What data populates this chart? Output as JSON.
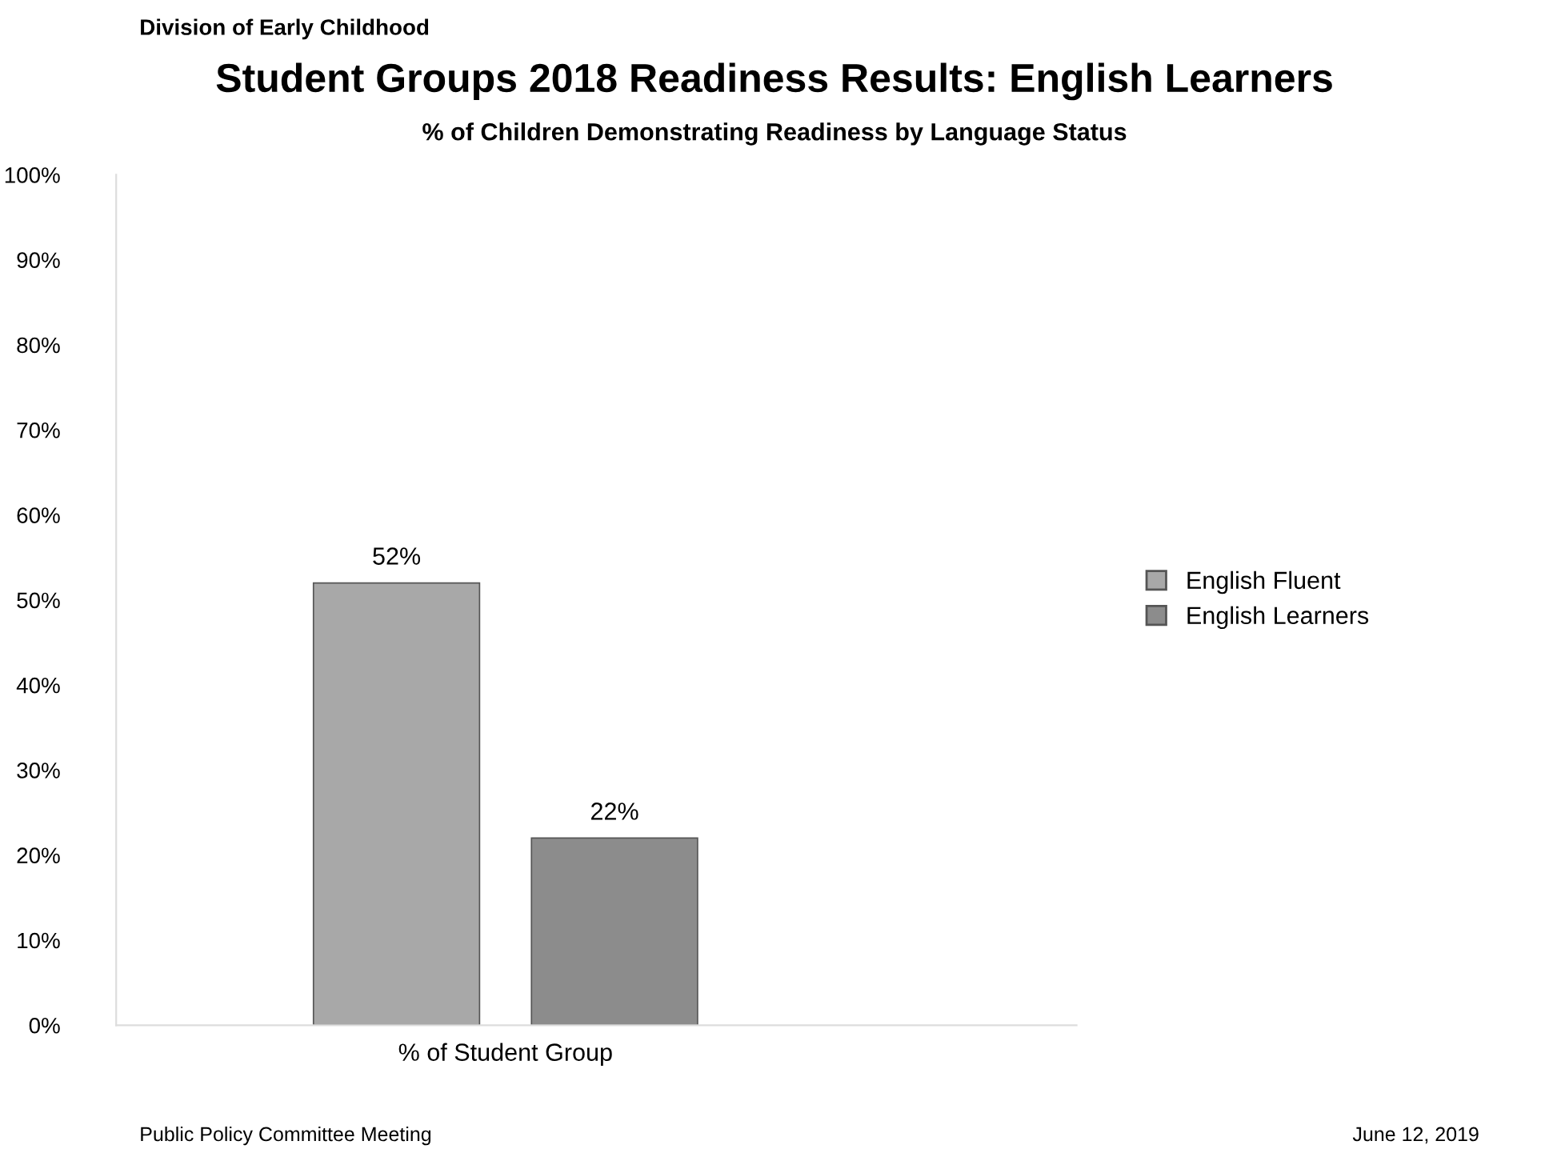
{
  "chart_data": {
    "type": "bar",
    "title": "Student Groups 2018 Readiness Results: English Learners",
    "subtitle": "% of Children Demonstrating Readiness by Language Status",
    "categories": [
      "% of Student Group"
    ],
    "series": [
      {
        "name": "English Fluent",
        "color": "#a8a8a8",
        "values": [
          52
        ],
        "value_labels": [
          "52%"
        ]
      },
      {
        "name": "English Learners",
        "color": "#8c8c8c",
        "values": [
          22
        ],
        "value_labels": [
          "22%"
        ]
      }
    ],
    "ylim": [
      0,
      100
    ],
    "yticks": [
      {
        "value": 0,
        "label": "0%"
      },
      {
        "value": 10,
        "label": "10%"
      },
      {
        "value": 20,
        "label": "20%"
      },
      {
        "value": 30,
        "label": "30%"
      },
      {
        "value": 40,
        "label": "40%"
      },
      {
        "value": 50,
        "label": "50%"
      },
      {
        "value": 60,
        "label": "60%"
      },
      {
        "value": 70,
        "label": "70%"
      },
      {
        "value": 80,
        "label": "80%"
      },
      {
        "value": 90,
        "label": "90%"
      },
      {
        "value": 100,
        "label": "100%"
      }
    ],
    "grid": false,
    "legend": "right",
    "annotations": [
      "Division of Early Childhood",
      "Public Policy Committee Meeting",
      "June 12, 2019"
    ]
  }
}
